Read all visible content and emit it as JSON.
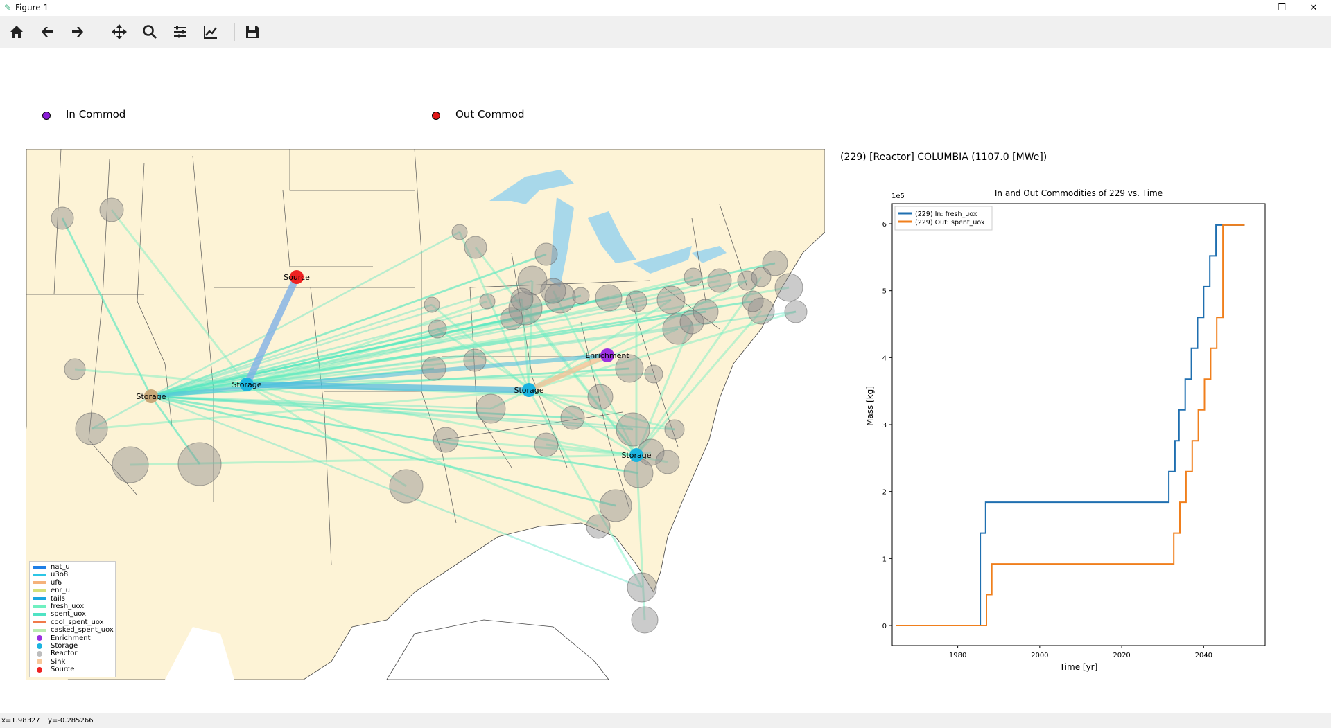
{
  "window": {
    "title": "Figure 1",
    "minimize": "—",
    "maximize": "❐",
    "close": "✕"
  },
  "toolbar": {
    "buttons": [
      "home-icon",
      "back-icon",
      "forward-icon",
      "pan-icon",
      "zoom-icon",
      "configure-subplots-icon",
      "edit-axis-icon",
      "save-icon"
    ]
  },
  "top_legend": {
    "in_label": "In Commod",
    "in_color": "#8a1cd8",
    "out_label": "Out Commod",
    "out_color": "#e01818"
  },
  "map": {
    "nodes": [
      {
        "label": "Source",
        "color": "#ee2222"
      },
      {
        "label": "Storage",
        "color": "#1bb4e0"
      },
      {
        "label": "Storage",
        "color": "#1bb4e0"
      },
      {
        "label": "Storage",
        "color": "#1bb4e0"
      },
      {
        "label": "Storage",
        "color": "#c8a878"
      },
      {
        "label": "Enrichment",
        "color": "#9a2fe0"
      }
    ],
    "legend": [
      {
        "label": "nat_u",
        "color": "#1f7fe6",
        "kind": "line"
      },
      {
        "label": "u3o8",
        "color": "#2cc6e6",
        "kind": "line"
      },
      {
        "label": "uf6",
        "color": "#f5b27a",
        "kind": "line"
      },
      {
        "label": "enr_u",
        "color": "#d4e07a",
        "kind": "line"
      },
      {
        "label": "tails",
        "color": "#1aa7e0",
        "kind": "line"
      },
      {
        "label": "fresh_uox",
        "color": "#6ff0c0",
        "kind": "line"
      },
      {
        "label": "spent_uox",
        "color": "#4fe3c4",
        "kind": "line"
      },
      {
        "label": "cool_spent_uox",
        "color": "#f07a4a",
        "kind": "line"
      },
      {
        "label": "casked_spent_uox",
        "color": "#b8ecb0",
        "kind": "line"
      },
      {
        "label": "Enrichment",
        "color": "#9a2fe0",
        "kind": "dot"
      },
      {
        "label": "Storage",
        "color": "#1bb4e0",
        "kind": "dot"
      },
      {
        "label": "Reactor",
        "color": "#bdbdbd",
        "kind": "dot"
      },
      {
        "label": "Sink",
        "color": "#f8c89a",
        "kind": "dot"
      },
      {
        "label": "Source",
        "color": "#ee2222",
        "kind": "dot"
      }
    ]
  },
  "facility": {
    "title": "(229) [Reactor] COLUMBIA    (1107.0 [MWe])"
  },
  "chart_data": {
    "type": "line",
    "title": "In and Out Commodities of 229 vs. Time",
    "xlabel": "Time [yr]",
    "ylabel": "Mass [kg]",
    "y_scale_label": "1e5",
    "xlim": [
      1964,
      2055
    ],
    "ylim": [
      -0.3,
      6.3
    ],
    "xticks": [
      1980,
      2000,
      2020,
      2040
    ],
    "yticks": [
      0,
      1,
      2,
      3,
      4,
      5,
      6
    ],
    "series": [
      {
        "name": "(229) In:  fresh_uox",
        "color": "#1f6fb0",
        "x": [
          1965,
          1985.5,
          1985.5,
          1986.8,
          1986.8,
          2031.2,
          2031.5,
          2031.5,
          2033,
          2033,
          2034,
          2034,
          2035.5,
          2035.5,
          2037,
          2037,
          2038.5,
          2038.5,
          2040,
          2040,
          2041.5,
          2041.5,
          2043,
          2043,
          2044.5,
          2044.5,
          2050
        ],
        "y": [
          0,
          0,
          1.38,
          1.38,
          1.84,
          1.84,
          1.84,
          2.3,
          2.3,
          2.76,
          2.76,
          3.22,
          3.22,
          3.68,
          3.68,
          4.14,
          4.14,
          4.6,
          4.6,
          5.06,
          5.06,
          5.52,
          5.52,
          5.98,
          5.98,
          5.98,
          5.98
        ]
      },
      {
        "name": "(229) Out: spent_uox",
        "color": "#f07f1c",
        "x": [
          1965,
          1987,
          1987,
          1988.3,
          1988.3,
          2032.7,
          2032.7,
          2034.2,
          2034.2,
          2035.7,
          2035.7,
          2037.2,
          2037.2,
          2038.7,
          2038.7,
          2040.2,
          2040.2,
          2041.7,
          2041.7,
          2043.2,
          2043.2,
          2044.7,
          2044.7,
          2050
        ],
        "y": [
          0,
          0,
          0.46,
          0.46,
          0.92,
          0.92,
          1.38,
          1.38,
          1.84,
          1.84,
          2.3,
          2.3,
          2.76,
          2.76,
          3.22,
          3.22,
          3.68,
          3.68,
          4.14,
          4.14,
          4.6,
          4.6,
          5.98,
          5.98
        ]
      }
    ]
  },
  "status": {
    "x": "x=1.98327",
    "y": "y=-0.285266"
  }
}
